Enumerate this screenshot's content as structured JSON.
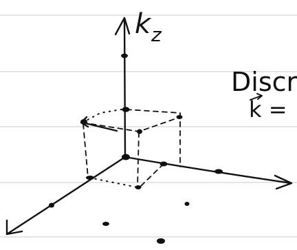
{
  "labels": {
    "axis_z_base": "k",
    "axis_z_sub": "z",
    "right_heading": "Discre",
    "right_line2": "k ="
  },
  "colors": {
    "ink": "#111111",
    "ruled_line": "#d9dde3",
    "paper": "#ffffff"
  }
}
